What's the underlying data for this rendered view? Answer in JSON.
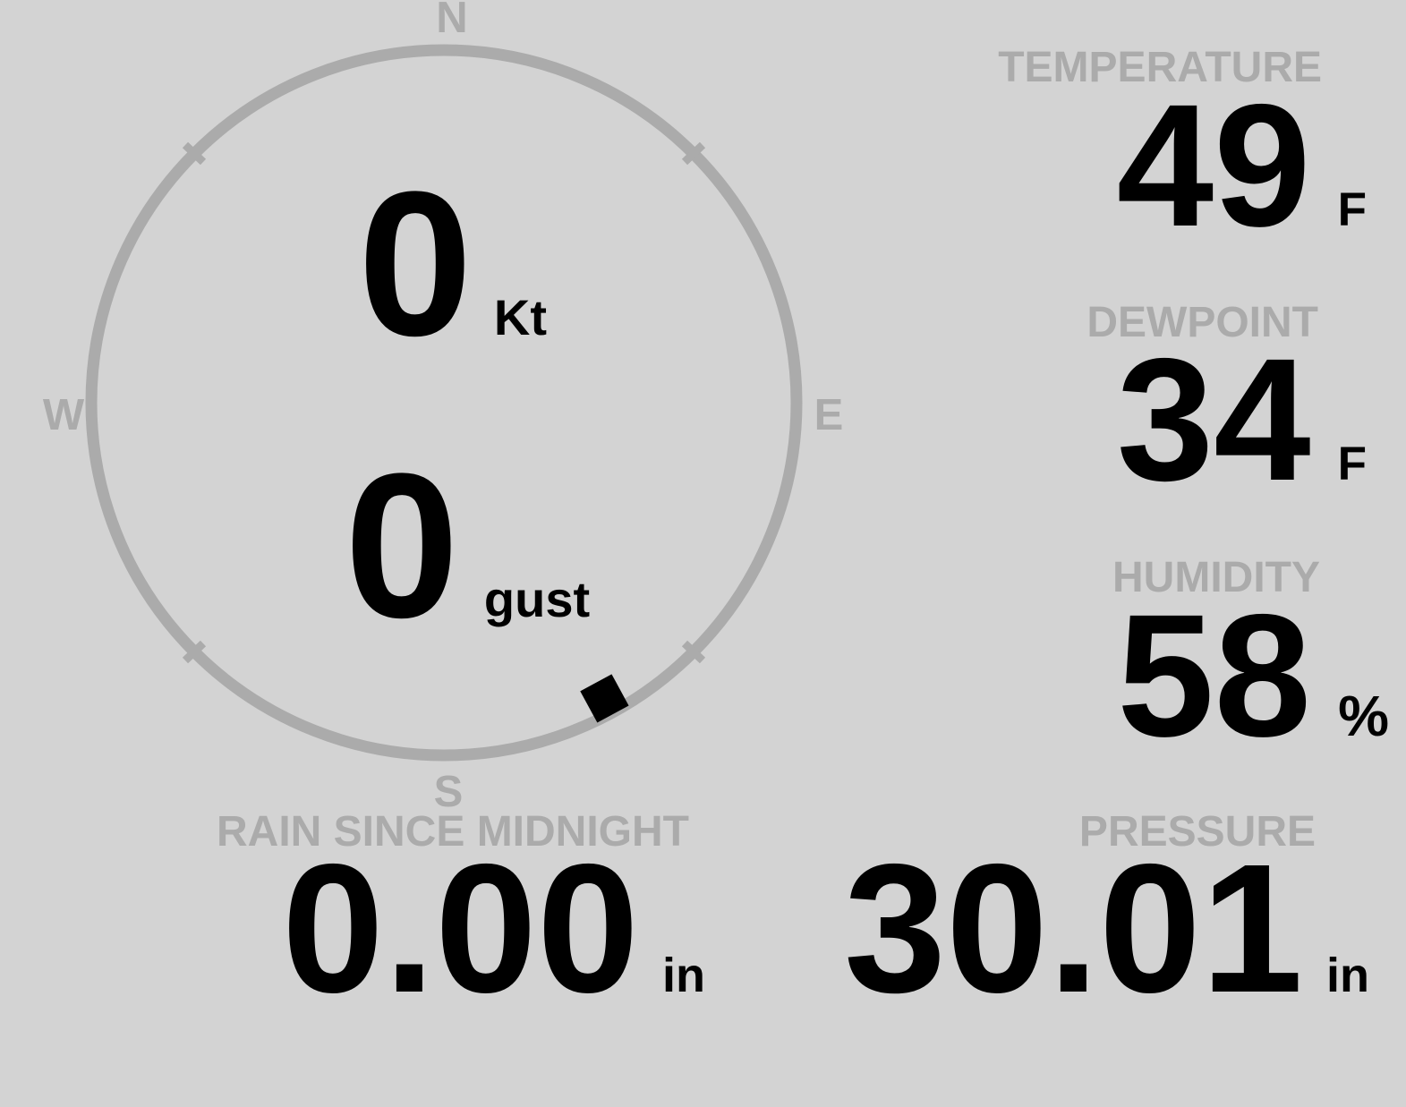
{
  "colors": {
    "background": "#d3d3d3",
    "muted_gray": "#ababab",
    "value_black": "#000000"
  },
  "compass": {
    "cardinals": {
      "north": "N",
      "east": "E",
      "south": "S",
      "west": "W"
    },
    "wind_speed": {
      "value": "0",
      "unit": "Kt"
    },
    "wind_gust": {
      "value": "0",
      "unit": "gust"
    },
    "direction_marker": {
      "bearing_deg": 151.5
    }
  },
  "metrics": {
    "temperature": {
      "label": "TEMPERATURE",
      "value": "49",
      "unit": "F"
    },
    "dewpoint": {
      "label": "DEWPOINT",
      "value": "34",
      "unit": "F"
    },
    "humidity": {
      "label": "HUMIDITY",
      "value": "58",
      "unit": "%"
    },
    "rain": {
      "label": "RAIN SINCE MIDNIGHT",
      "value": "0.00",
      "unit": "in"
    },
    "pressure": {
      "label": "PRESSURE",
      "value": "30.01",
      "unit": "in"
    }
  }
}
